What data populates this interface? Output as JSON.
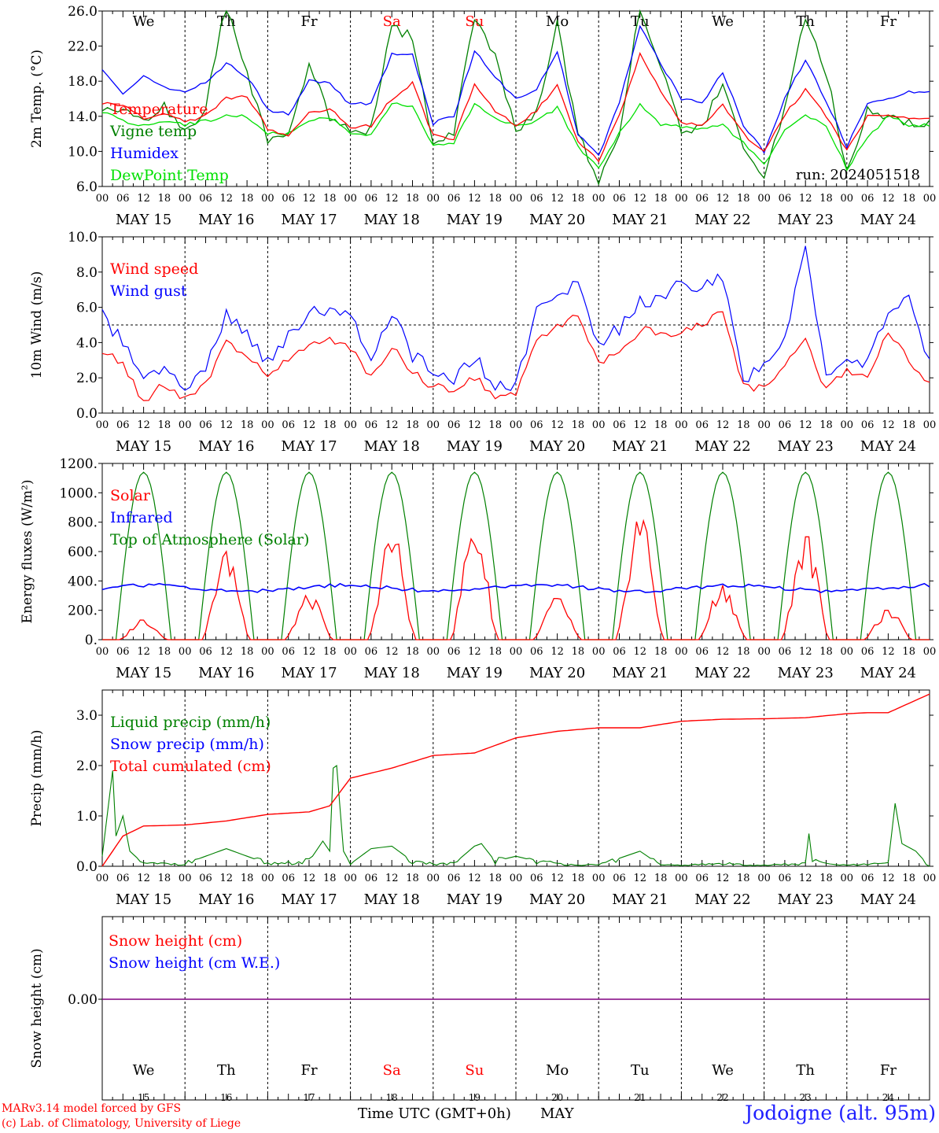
{
  "footer": {
    "model": "MARv3.14 model forced by GFS",
    "credit": "(c) Lab. of Climatology, University of Liege",
    "xaxis_title": "Time UTC (GMT+0h)",
    "month": "MAY",
    "station": "Jodoigne (alt. 95m)"
  },
  "colors": {
    "red": "#ff0000",
    "green": "#008000",
    "blue": "#0000ff",
    "lightgreen": "#00e000",
    "purple": "#800080"
  },
  "days": {
    "weekdays": [
      "We",
      "Th",
      "Fr",
      "Sa",
      "Su",
      "Mo",
      "Tu",
      "We",
      "Th",
      "Fr"
    ],
    "weekend_flags": [
      false,
      false,
      false,
      true,
      true,
      false,
      false,
      false,
      false,
      false
    ],
    "dates": [
      "MAY 15",
      "MAY 16",
      "MAY 17",
      "MAY 18",
      "MAY 19",
      "MAY 20",
      "MAY 21",
      "MAY 22",
      "MAY 23",
      "MAY 24"
    ],
    "day_numbers": [
      "15",
      "16",
      "17",
      "18",
      "19",
      "20",
      "21",
      "22",
      "23",
      "24"
    ],
    "hour_ticks": [
      "00",
      "06",
      "12",
      "18"
    ],
    "end_tick": "00"
  },
  "chart_data": [
    {
      "type": "line",
      "ylabel": "2m Temp. (°C)",
      "ylim": [
        6,
        26
      ],
      "yticks": [
        "6.0",
        "10.0",
        "14.0",
        "18.0",
        "22.0",
        "26.0"
      ],
      "annotation": "run: 2024051518",
      "x_hours": [
        0,
        6,
        12,
        18,
        24,
        30,
        36,
        42,
        48,
        54,
        60,
        66,
        72,
        78,
        84,
        90,
        96,
        102,
        108,
        114,
        120,
        126,
        132,
        138,
        144,
        150,
        156,
        162,
        168,
        174,
        180,
        186,
        192,
        198,
        204,
        210,
        216,
        222,
        228,
        234,
        240
      ],
      "series": [
        {
          "name": "Temperature",
          "color": "#ff0000",
          "values": [
            15.6,
            15.2,
            13.8,
            14.2,
            13.5,
            14.0,
            16.0,
            16.2,
            12.6,
            11.8,
            14.6,
            14.8,
            12.8,
            12.9,
            16.0,
            17.8,
            11.8,
            11.5,
            17.6,
            14.5,
            13.0,
            14.6,
            17.5,
            11.0,
            9.0,
            14.0,
            21.0,
            17.0,
            13.3,
            13.0,
            15.2,
            12.0,
            10.0,
            14.2,
            17.0,
            14.0,
            10.0,
            14.2,
            14.0,
            13.8,
            13.7
          ]
        },
        {
          "name": "Vigne temp",
          "color": "#008000",
          "values": [
            15.0,
            14.5,
            13.5,
            15.0,
            12.0,
            15.0,
            27.0,
            19.0,
            11.0,
            12.5,
            20.0,
            14.0,
            12.2,
            12.5,
            24.0,
            23.0,
            11.0,
            12.0,
            25.5,
            21.0,
            12.5,
            14.5,
            24.5,
            12.0,
            6.8,
            12.0,
            26.5,
            20.0,
            12.5,
            12.6,
            18.0,
            10.0,
            6.8,
            15.0,
            25.5,
            19.0,
            8.0,
            14.5,
            14.0,
            13.3,
            13.0
          ]
        },
        {
          "name": "Humidex",
          "color": "#0000ff",
          "values": [
            19.5,
            16.5,
            18.5,
            17.2,
            16.8,
            18.0,
            20.0,
            18.5,
            14.8,
            14.2,
            18.0,
            17.8,
            15.3,
            15.5,
            21.0,
            21.0,
            13.2,
            14.0,
            21.5,
            18.5,
            16.0,
            17.0,
            21.5,
            12.0,
            9.5,
            15.5,
            24.3,
            20.0,
            16.0,
            15.5,
            19.0,
            13.0,
            10.0,
            16.0,
            20.5,
            15.8,
            10.5,
            15.5,
            16.0,
            16.8,
            16.7
          ]
        },
        {
          "name": "DewPoint Temp",
          "color": "#00e000",
          "values": [
            14.5,
            13.5,
            13.0,
            13.5,
            13.0,
            13.5,
            14.0,
            14.0,
            12.0,
            12.0,
            13.5,
            13.8,
            12.0,
            12.0,
            15.5,
            15.0,
            10.5,
            11.0,
            15.5,
            13.8,
            13.0,
            13.5,
            15.0,
            10.5,
            8.0,
            12.0,
            15.5,
            13.0,
            12.8,
            12.5,
            13.0,
            11.0,
            8.5,
            12.5,
            14.0,
            13.0,
            8.0,
            11.5,
            14.0,
            13.0,
            13.0
          ]
        }
      ]
    },
    {
      "type": "line",
      "ylabel": "10m Wind (m/s)",
      "ylim": [
        0,
        10
      ],
      "yticks": [
        "0.0",
        "2.0",
        "4.0",
        "6.0",
        "8.0",
        "10.0"
      ],
      "ref_line": 5,
      "x_hours": [
        0,
        6,
        12,
        18,
        24,
        30,
        36,
        42,
        48,
        54,
        60,
        66,
        72,
        78,
        84,
        90,
        96,
        102,
        108,
        114,
        120,
        126,
        132,
        138,
        144,
        150,
        156,
        162,
        168,
        174,
        180,
        186,
        192,
        198,
        204,
        210,
        216,
        222,
        228,
        234,
        240
      ],
      "series": [
        {
          "name": "Wind speed",
          "color": "#ff0000",
          "values": [
            3.6,
            2.8,
            0.5,
            1.7,
            0.8,
            1.7,
            4.0,
            3.2,
            2.1,
            3.0,
            4.0,
            4.2,
            3.8,
            2.0,
            3.8,
            2.3,
            1.5,
            1.2,
            2.0,
            1.0,
            1.2,
            4.0,
            5.0,
            5.5,
            3.0,
            3.2,
            4.8,
            4.5,
            4.6,
            5.0,
            5.8,
            1.5,
            1.5,
            2.8,
            4.0,
            1.2,
            2.5,
            2.0,
            4.5,
            3.0,
            1.8
          ]
        },
        {
          "name": "Wind gust",
          "color": "#0000ff",
          "values": [
            5.5,
            4.0,
            1.8,
            2.5,
            1.2,
            2.5,
            5.5,
            4.5,
            2.8,
            4.3,
            5.6,
            6.0,
            5.5,
            3.0,
            5.8,
            3.2,
            2.5,
            2.0,
            3.2,
            1.5,
            1.5,
            5.8,
            6.5,
            7.7,
            3.8,
            4.8,
            6.3,
            6.5,
            7.3,
            7.0,
            7.8,
            2.0,
            2.5,
            4.5,
            9.2,
            2.0,
            3.0,
            2.8,
            5.8,
            6.5,
            3.0
          ]
        }
      ]
    },
    {
      "type": "line",
      "ylabel": "Energy fluxes (W/m²)",
      "ylim": [
        0,
        1200
      ],
      "yticks": [
        "0.",
        "200.",
        "400.",
        "600.",
        "800.",
        "1000.",
        "1200."
      ],
      "series": [
        {
          "name": "Solar",
          "color": "#ff0000",
          "day_peaks": [
            140,
            600,
            300,
            720,
            770,
            280,
            850,
            370,
            700,
            200
          ]
        },
        {
          "name": "Infrared",
          "color": "#0000ff",
          "mean": 350
        },
        {
          "name": "Top of Atmosphere (Solar)",
          "color": "#008000",
          "daily_peak": 1140
        }
      ]
    },
    {
      "type": "line",
      "ylabel": "Precip (mm/h)",
      "ylim": [
        0,
        3.5
      ],
      "yticks": [
        "0.0",
        "1.0",
        "2.0",
        "3.0"
      ],
      "series": [
        {
          "name": "Liquid precip (mm/h)",
          "color": "#008000"
        },
        {
          "name": "Snow precip (mm/h)",
          "color": "#0000ff"
        },
        {
          "name": "Total cumulated (cm)",
          "color": "#ff0000"
        }
      ],
      "cumulated_hours": [
        0,
        6,
        12,
        24,
        36,
        48,
        60,
        66,
        72,
        84,
        96,
        108,
        120,
        132,
        144,
        156,
        168,
        180,
        192,
        204,
        216,
        222,
        228,
        240
      ],
      "cumulated_values": [
        0.0,
        0.6,
        0.8,
        0.82,
        0.9,
        1.03,
        1.08,
        1.2,
        1.75,
        1.95,
        2.2,
        2.25,
        2.55,
        2.68,
        2.75,
        2.75,
        2.88,
        2.92,
        2.93,
        2.95,
        3.03,
        3.05,
        3.05,
        3.42
      ],
      "liquid_hours": [
        0,
        3,
        4,
        6,
        8,
        12,
        24,
        36,
        48,
        60,
        64,
        66,
        67,
        68,
        70,
        72,
        78,
        84,
        90,
        96,
        102,
        108,
        110,
        114,
        120,
        126,
        132,
        144,
        156,
        162,
        168,
        180,
        192,
        204,
        205,
        206,
        210,
        216,
        228,
        230,
        232,
        236,
        240
      ],
      "liquid_values": [
        0.2,
        1.9,
        0.6,
        1.0,
        0.3,
        0.05,
        0.05,
        0.35,
        0.05,
        0.1,
        0.5,
        0.3,
        1.95,
        2.0,
        0.3,
        0.05,
        0.35,
        0.4,
        0.1,
        0.05,
        0.05,
        0.4,
        0.45,
        0.1,
        0.2,
        0.1,
        0.05,
        0.02,
        0.3,
        0.02,
        0.02,
        0.05,
        0.02,
        0.05,
        0.65,
        0.1,
        0.05,
        0.02,
        0.05,
        1.25,
        0.45,
        0.3,
        0.0
      ]
    },
    {
      "type": "line",
      "ylabel": "Snow height (cm)",
      "yticks": [
        "0.00"
      ],
      "series": [
        {
          "name": "Snow height (cm)",
          "color": "#ff0000",
          "values": [
            0
          ]
        },
        {
          "name": "Snow height (cm W.E.)",
          "color": "#0000ff",
          "values": [
            0
          ]
        }
      ]
    }
  ]
}
